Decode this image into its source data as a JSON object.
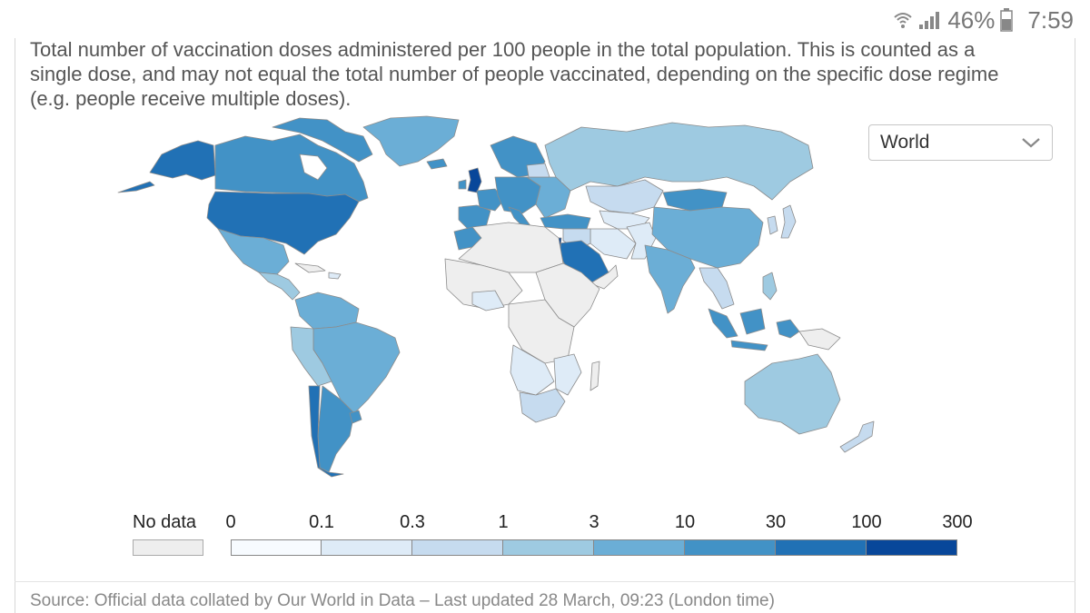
{
  "status_bar": {
    "battery": "46%",
    "time": "7:59"
  },
  "subtitle": "Total number of vaccination doses administered per 100 people in the total population. This is counted as a single dose, and may not equal the total number of people vaccinated, depending on the specific dose regime (e.g. people receive multiple doses).",
  "region_select": {
    "value": "World"
  },
  "legend": {
    "no_data_label": "No data",
    "no_data_color": "#eeeeee",
    "ticks": [
      "0",
      "0.1",
      "0.3",
      "1",
      "3",
      "10",
      "30",
      "100",
      "300"
    ],
    "colors": [
      "#f7fbff",
      "#deebf7",
      "#c6dbef",
      "#9ecae1",
      "#6baed6",
      "#4292c6",
      "#2171b5",
      "#08479a"
    ]
  },
  "source": "Source: Official data collated by Our World in Data – Last updated 28 March, 09:23 (London time)"
}
